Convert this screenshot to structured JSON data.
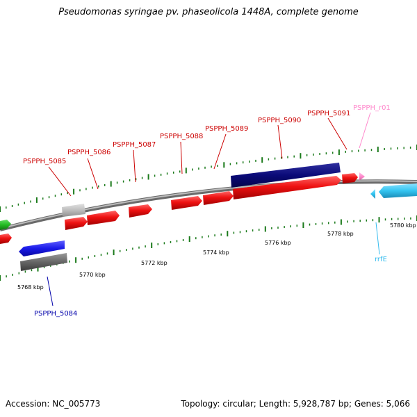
{
  "title": "Pseudomonas syringae pv. phaseolicola 1448A, complete genome",
  "accession_text": "Accession: NC_005773",
  "summary_text": "Topology: circular; Length: 5,928,787 bp; Genes: 5,066",
  "colors": {
    "red": "#ee1111",
    "red_label": "#cc0000",
    "navy": "#0a0a78",
    "blue": "#1a1ae8",
    "blue_label": "#0000aa",
    "gray": "#666666",
    "light_gray": "#bdbdbd",
    "green": "#22bb22",
    "pink": "#ff88cc",
    "pink_label": "#ff88cc",
    "cyan": "#33c4f0",
    "cyan_label": "#33bbee",
    "tick_green": "#1a7a1a"
  },
  "scale": {
    "labels": [
      "5768 kbp",
      "5770 kbp",
      "5772 kbp",
      "5774 kbp",
      "5776 kbp",
      "5778 kbp",
      "5780 kbp"
    ]
  },
  "gene_labels": [
    {
      "id": "PSPPH_5084",
      "text": "PSPPH_5084",
      "color": "blue_label"
    },
    {
      "id": "PSPPH_5085",
      "text": "PSPPH_5085",
      "color": "red_label"
    },
    {
      "id": "PSPPH_5086",
      "text": "PSPPH_5086",
      "color": "red_label"
    },
    {
      "id": "PSPPH_5087",
      "text": "PSPPH_5087",
      "color": "red_label"
    },
    {
      "id": "PSPPH_5088",
      "text": "PSPPH_5088",
      "color": "red_label"
    },
    {
      "id": "PSPPH_5089",
      "text": "PSPPH_5089",
      "color": "red_label"
    },
    {
      "id": "PSPPH_5090",
      "text": "PSPPH_5090",
      "color": "red_label"
    },
    {
      "id": "PSPPH_5091",
      "text": "PSPPH_5091",
      "color": "red_label"
    },
    {
      "id": "PSPPH_r01",
      "text": "PSPPH_r01",
      "color": "pink_label"
    },
    {
      "id": "rrfE",
      "text": "rrfE",
      "color": "cyan_label"
    }
  ]
}
